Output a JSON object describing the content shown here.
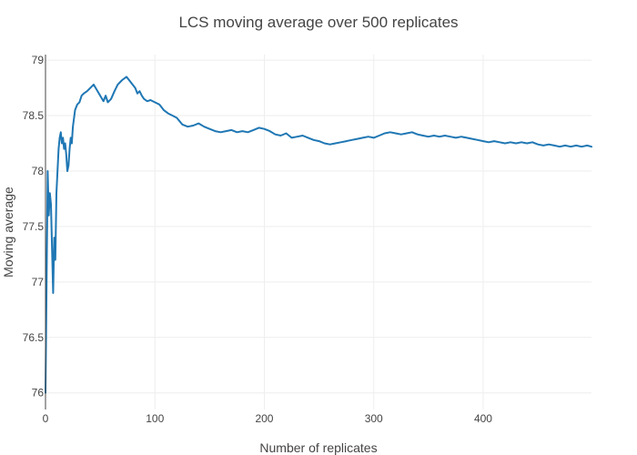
{
  "chart_data": {
    "type": "line",
    "title": "LCS moving average over 500 replicates",
    "xlabel": "Number of replicates",
    "ylabel": "Moving average",
    "xlim": [
      0,
      499
    ],
    "ylim": [
      75.85,
      79.05
    ],
    "xticks": [
      0,
      100,
      200,
      300,
      400
    ],
    "yticks": [
      76,
      76.5,
      77,
      77.5,
      78,
      78.5,
      79
    ],
    "ytick_labels": [
      "76",
      "76.5",
      "77",
      "77.5",
      "78",
      "78.5",
      "79"
    ],
    "grid": true,
    "color": "#1f77b4",
    "series": [
      {
        "x": [
          0,
          1,
          2,
          3,
          4,
          5,
          6,
          7,
          8,
          9,
          10,
          11,
          12,
          13,
          14,
          15,
          16,
          17,
          18,
          19,
          20,
          21,
          22,
          23,
          24,
          25,
          27,
          29,
          31,
          33,
          35,
          38,
          41,
          44,
          47,
          50,
          53,
          55,
          57,
          60,
          63,
          66,
          70,
          74,
          78,
          82,
          84,
          86,
          88,
          90,
          93,
          96,
          100,
          104,
          108,
          112,
          116,
          120,
          125,
          130,
          135,
          140,
          145,
          150,
          155,
          160,
          165,
          170,
          175,
          180,
          185,
          190,
          195,
          200,
          205,
          210,
          215,
          220,
          225,
          230,
          235,
          240,
          245,
          250,
          255,
          260,
          265,
          270,
          275,
          280,
          285,
          290,
          295,
          300,
          305,
          310,
          315,
          320,
          325,
          330,
          335,
          340,
          345,
          350,
          355,
          360,
          365,
          370,
          375,
          380,
          385,
          390,
          395,
          400,
          405,
          410,
          415,
          420,
          425,
          430,
          435,
          440,
          445,
          450,
          455,
          460,
          465,
          470,
          475,
          480,
          485,
          490,
          495,
          499
        ],
        "y": [
          76.0,
          77.0,
          78.0,
          77.6,
          77.8,
          77.7,
          77.3,
          76.9,
          77.4,
          77.2,
          77.8,
          78.0,
          78.2,
          78.3,
          78.35,
          78.25,
          78.3,
          78.2,
          78.25,
          78.15,
          78.0,
          78.05,
          78.2,
          78.3,
          78.25,
          78.4,
          78.55,
          78.6,
          78.62,
          78.68,
          78.7,
          78.72,
          78.75,
          78.78,
          78.73,
          78.68,
          78.63,
          78.68,
          78.62,
          78.65,
          78.72,
          78.78,
          78.82,
          78.85,
          78.8,
          78.75,
          78.7,
          78.72,
          78.68,
          78.65,
          78.63,
          78.64,
          78.62,
          78.6,
          78.55,
          78.52,
          78.5,
          78.48,
          78.42,
          78.4,
          78.41,
          78.43,
          78.4,
          78.38,
          78.36,
          78.35,
          78.36,
          78.37,
          78.35,
          78.36,
          78.35,
          78.37,
          78.39,
          78.38,
          78.36,
          78.33,
          78.32,
          78.34,
          78.3,
          78.31,
          78.32,
          78.3,
          78.28,
          78.27,
          78.25,
          78.24,
          78.25,
          78.26,
          78.27,
          78.28,
          78.29,
          78.3,
          78.31,
          78.3,
          78.32,
          78.34,
          78.35,
          78.34,
          78.33,
          78.34,
          78.35,
          78.33,
          78.32,
          78.31,
          78.32,
          78.31,
          78.32,
          78.31,
          78.3,
          78.31,
          78.3,
          78.29,
          78.28,
          78.27,
          78.26,
          78.27,
          78.26,
          78.25,
          78.26,
          78.25,
          78.26,
          78.25,
          78.26,
          78.24,
          78.23,
          78.24,
          78.23,
          78.22,
          78.23,
          78.22,
          78.23,
          78.22,
          78.23,
          78.22
        ]
      }
    ]
  }
}
